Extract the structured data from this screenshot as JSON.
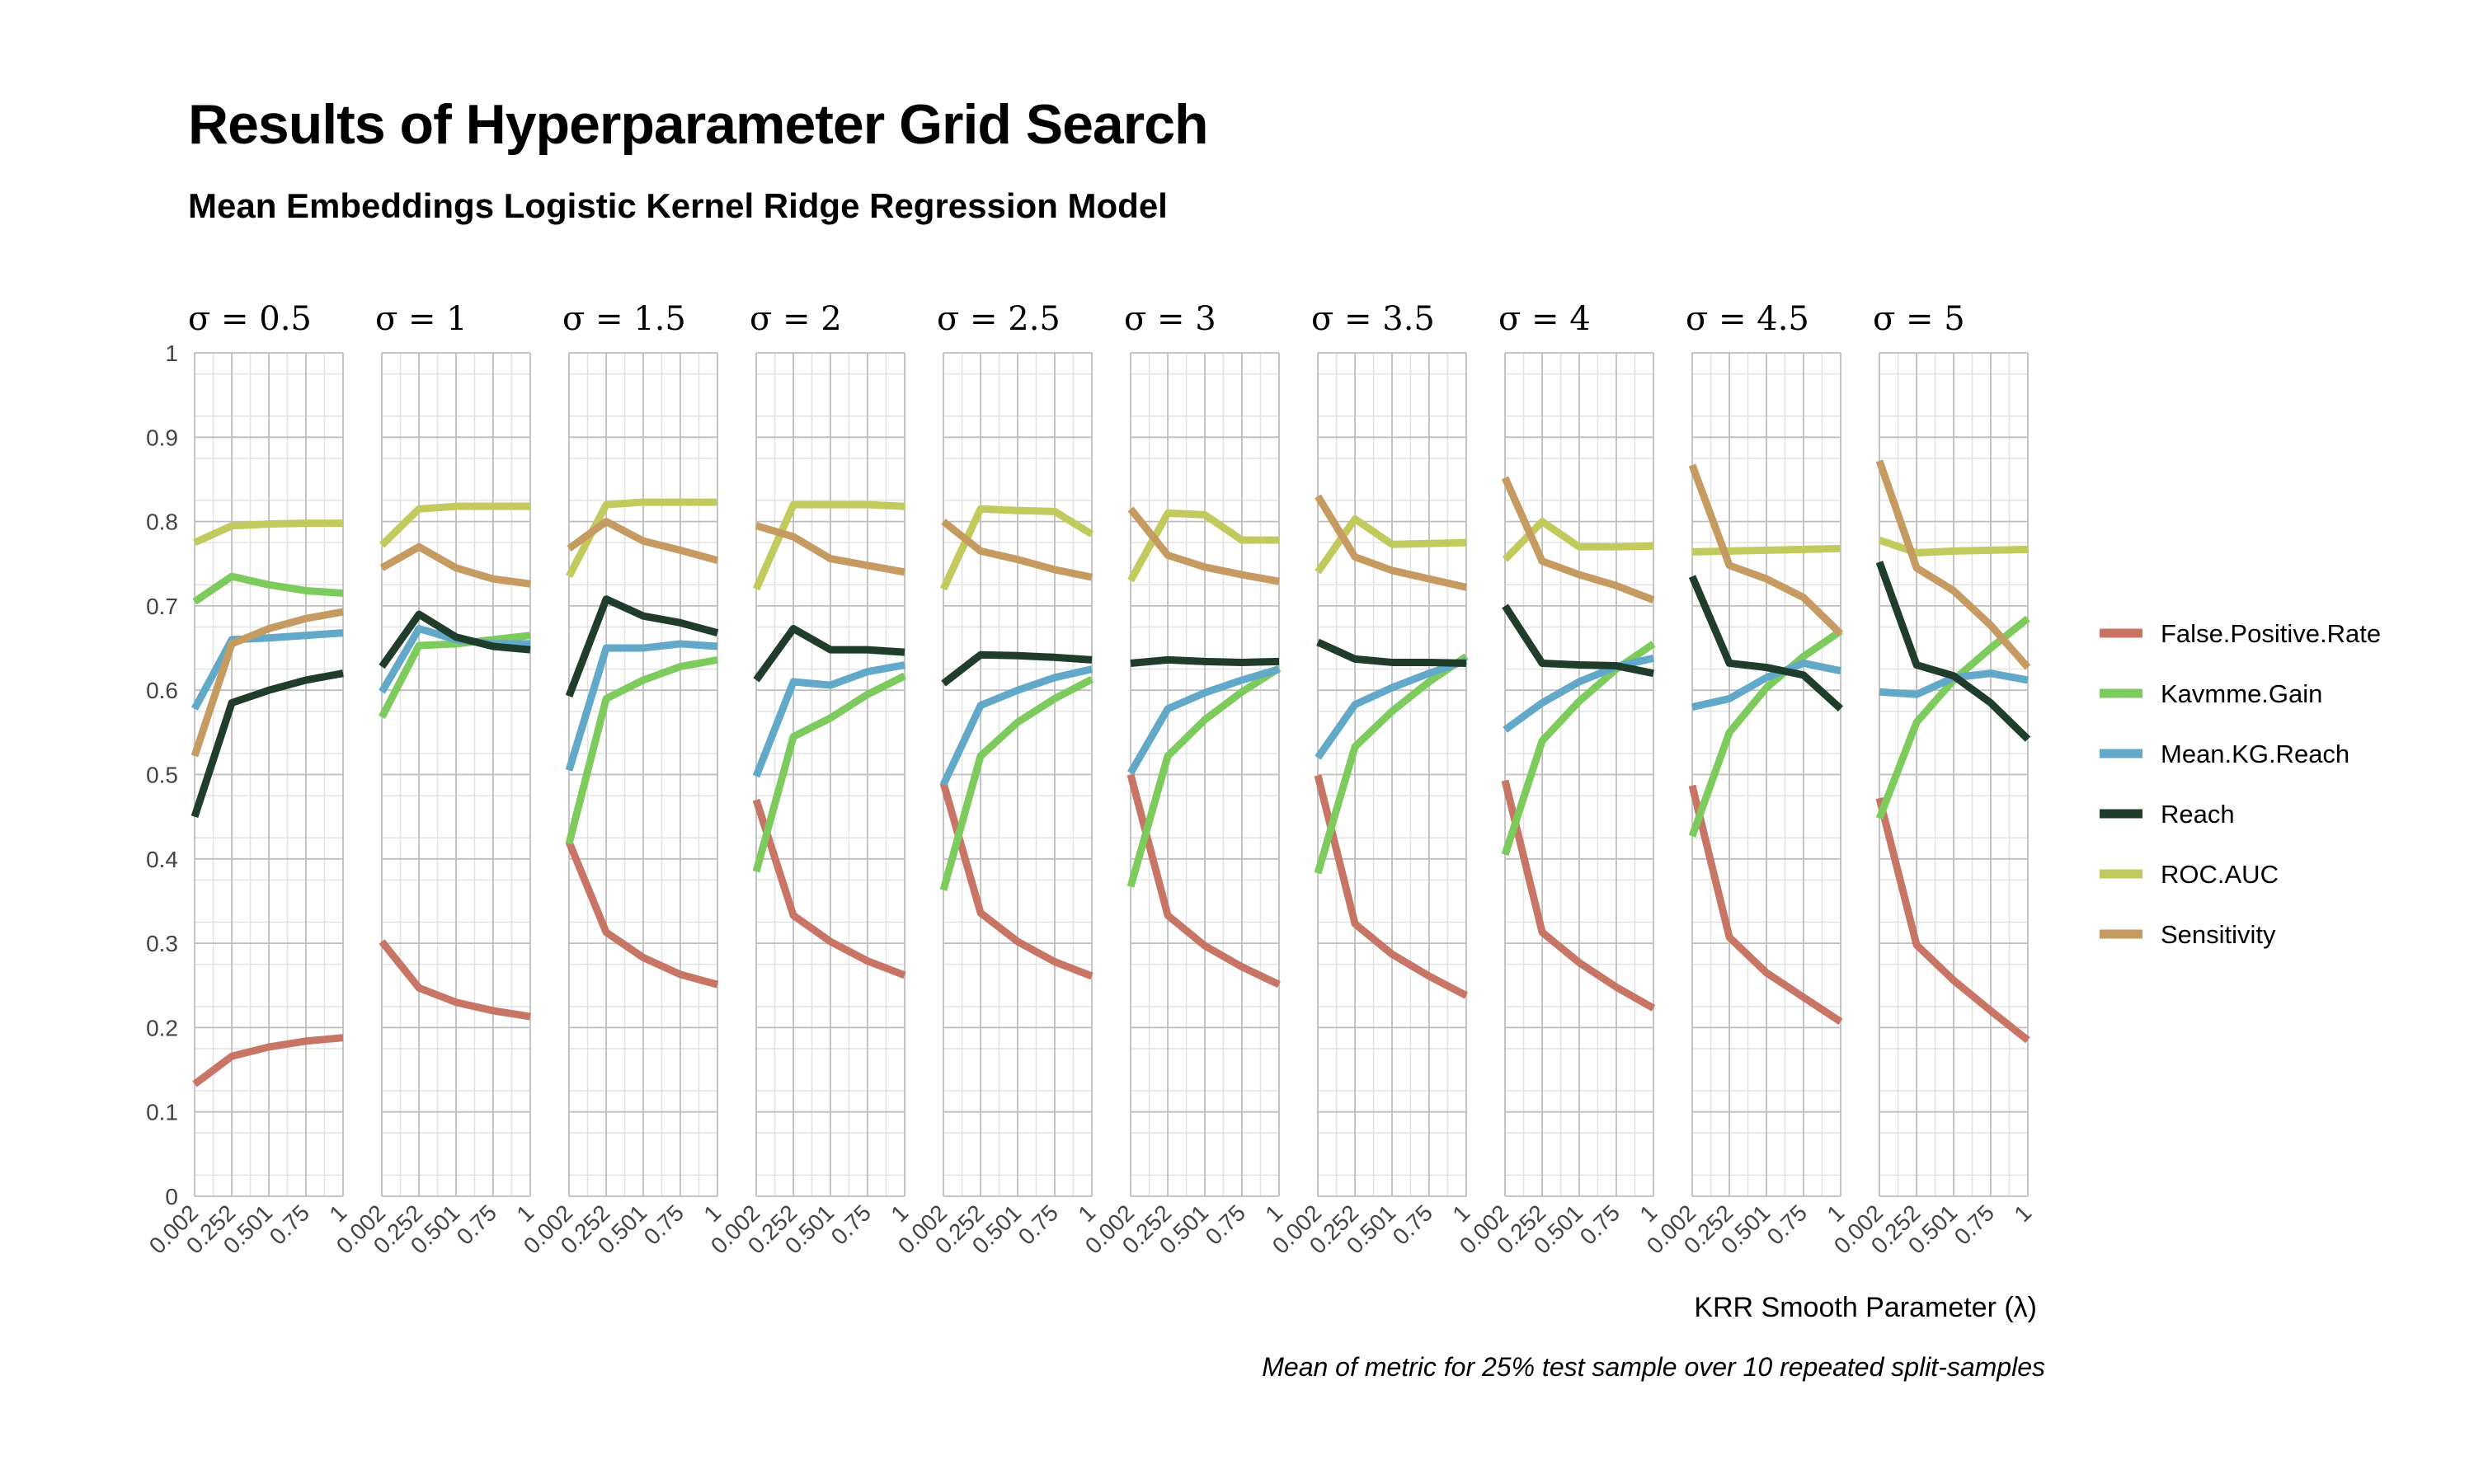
{
  "page": {
    "title": "Results of Hyperparameter Grid Search",
    "subtitle": "Mean Embeddings Logistic Kernel Ridge Regression Model",
    "caption": "Mean of metric for 25% test sample over 10 repeated split-samples"
  },
  "colors": {
    "False.Positive.Rate": "#c87565",
    "Kavmme.Gain": "#7dcb5c",
    "Mean.KG.Reach": "#62a8c9",
    "Reach": "#1f3d2a",
    "ROC.AUC": "#c2ca5e",
    "Sensitivity": "#c69b62"
  },
  "chart_data": {
    "type": "line",
    "title": "Results of Hyperparameter Grid Search",
    "subtitle": "Mean Embeddings Logistic Kernel Ridge Regression Model",
    "xlabel": "KRR Smooth Parameter (λ)",
    "ylabel": "",
    "x": [
      0.002,
      0.252,
      0.501,
      0.75,
      1
    ],
    "x_tick_labels": [
      "0.002",
      "0.252",
      "0.501",
      "0.75",
      "1"
    ],
    "y_tick_labels": [
      "0",
      "0.1",
      "0.2",
      "0.3",
      "0.4",
      "0.5",
      "0.6",
      "0.7",
      "0.8",
      "0.9",
      "1"
    ],
    "ylim": [
      0,
      1
    ],
    "grid": true,
    "legend_position": "right",
    "legend": [
      "False.Positive.Rate",
      "Kavmme.Gain",
      "Mean.KG.Reach",
      "Reach",
      "ROC.AUC",
      "Sensitivity"
    ],
    "facet_variable": "σ",
    "panels": [
      {
        "label": "σ = 0.5",
        "series": [
          {
            "name": "False.Positive.Rate",
            "values": [
              0.133,
              0.166,
              0.177,
              0.184,
              0.188
            ]
          },
          {
            "name": "Kavmme.Gain",
            "values": [
              0.705,
              0.735,
              0.725,
              0.718,
              0.715
            ]
          },
          {
            "name": "Mean.KG.Reach",
            "values": [
              0.578,
              0.66,
              0.662,
              0.665,
              0.668
            ]
          },
          {
            "name": "Reach",
            "values": [
              0.45,
              0.585,
              0.6,
              0.612,
              0.62
            ]
          },
          {
            "name": "ROC.AUC",
            "values": [
              0.775,
              0.795,
              0.797,
              0.798,
              0.798
            ]
          },
          {
            "name": "Sensitivity",
            "values": [
              0.522,
              0.655,
              0.673,
              0.685,
              0.693
            ]
          }
        ]
      },
      {
        "label": "σ = 1",
        "series": [
          {
            "name": "False.Positive.Rate",
            "values": [
              0.302,
              0.247,
              0.23,
              0.22,
              0.213
            ]
          },
          {
            "name": "Kavmme.Gain",
            "values": [
              0.568,
              0.653,
              0.655,
              0.66,
              0.665
            ]
          },
          {
            "name": "Mean.KG.Reach",
            "values": [
              0.598,
              0.673,
              0.66,
              0.655,
              0.655
            ]
          },
          {
            "name": "Reach",
            "values": [
              0.628,
              0.69,
              0.663,
              0.652,
              0.648
            ]
          },
          {
            "name": "ROC.AUC",
            "values": [
              0.772,
              0.815,
              0.818,
              0.818,
              0.818
            ]
          },
          {
            "name": "Sensitivity",
            "values": [
              0.745,
              0.77,
              0.745,
              0.732,
              0.726
            ]
          }
        ]
      },
      {
        "label": "σ = 1.5",
        "series": [
          {
            "name": "False.Positive.Rate",
            "values": [
              0.42,
              0.313,
              0.283,
              0.263,
              0.251
            ]
          },
          {
            "name": "Kavmme.Gain",
            "values": [
              0.418,
              0.59,
              0.612,
              0.628,
              0.636
            ]
          },
          {
            "name": "Mean.KG.Reach",
            "values": [
              0.505,
              0.65,
              0.65,
              0.655,
              0.652
            ]
          },
          {
            "name": "Reach",
            "values": [
              0.593,
              0.708,
              0.688,
              0.68,
              0.668
            ]
          },
          {
            "name": "ROC.AUC",
            "values": [
              0.735,
              0.82,
              0.823,
              0.823,
              0.823
            ]
          },
          {
            "name": "Sensitivity",
            "values": [
              0.768,
              0.8,
              0.777,
              0.766,
              0.754
            ]
          }
        ]
      },
      {
        "label": "σ = 2",
        "series": [
          {
            "name": "False.Positive.Rate",
            "values": [
              0.47,
              0.333,
              0.302,
              0.279,
              0.262
            ]
          },
          {
            "name": "Kavmme.Gain",
            "values": [
              0.385,
              0.545,
              0.567,
              0.595,
              0.617
            ]
          },
          {
            "name": "Mean.KG.Reach",
            "values": [
              0.498,
              0.61,
              0.606,
              0.622,
              0.63
            ]
          },
          {
            "name": "Reach",
            "values": [
              0.612,
              0.673,
              0.648,
              0.648,
              0.645
            ]
          },
          {
            "name": "ROC.AUC",
            "values": [
              0.72,
              0.82,
              0.82,
              0.82,
              0.818
            ]
          },
          {
            "name": "Sensitivity",
            "values": [
              0.795,
              0.782,
              0.756,
              0.748,
              0.74
            ]
          }
        ]
      },
      {
        "label": "σ = 2.5",
        "series": [
          {
            "name": "False.Positive.Rate",
            "values": [
              0.49,
              0.336,
              0.302,
              0.278,
              0.261
            ]
          },
          {
            "name": "Kavmme.Gain",
            "values": [
              0.363,
              0.522,
              0.562,
              0.59,
              0.613
            ]
          },
          {
            "name": "Mean.KG.Reach",
            "values": [
              0.488,
              0.582,
              0.6,
              0.615,
              0.625
            ]
          },
          {
            "name": "Reach",
            "values": [
              0.608,
              0.642,
              0.641,
              0.639,
              0.636
            ]
          },
          {
            "name": "ROC.AUC",
            "values": [
              0.72,
              0.815,
              0.813,
              0.812,
              0.785
            ]
          },
          {
            "name": "Sensitivity",
            "values": [
              0.8,
              0.765,
              0.755,
              0.743,
              0.734
            ]
          }
        ]
      },
      {
        "label": "σ = 3",
        "series": [
          {
            "name": "False.Positive.Rate",
            "values": [
              0.5,
              0.333,
              0.297,
              0.272,
              0.251
            ]
          },
          {
            "name": "Kavmme.Gain",
            "values": [
              0.367,
              0.522,
              0.565,
              0.598,
              0.626
            ]
          },
          {
            "name": "Mean.KG.Reach",
            "values": [
              0.502,
              0.578,
              0.597,
              0.612,
              0.625
            ]
          },
          {
            "name": "Reach",
            "values": [
              0.632,
              0.636,
              0.634,
              0.633,
              0.634
            ]
          },
          {
            "name": "ROC.AUC",
            "values": [
              0.73,
              0.81,
              0.808,
              0.778,
              0.778
            ]
          },
          {
            "name": "Sensitivity",
            "values": [
              0.815,
              0.76,
              0.746,
              0.737,
              0.729
            ]
          }
        ]
      },
      {
        "label": "σ = 3.5",
        "series": [
          {
            "name": "False.Positive.Rate",
            "values": [
              0.499,
              0.323,
              0.287,
              0.261,
              0.238
            ]
          },
          {
            "name": "Kavmme.Gain",
            "values": [
              0.383,
              0.533,
              0.575,
              0.61,
              0.64
            ]
          },
          {
            "name": "Mean.KG.Reach",
            "values": [
              0.52,
              0.583,
              0.603,
              0.62,
              0.635
            ]
          },
          {
            "name": "Reach",
            "values": [
              0.657,
              0.637,
              0.633,
              0.633,
              0.632
            ]
          },
          {
            "name": "ROC.AUC",
            "values": [
              0.74,
              0.803,
              0.773,
              0.774,
              0.775
            ]
          },
          {
            "name": "Sensitivity",
            "values": [
              0.83,
              0.758,
              0.742,
              0.732,
              0.722
            ]
          }
        ]
      },
      {
        "label": "σ = 4",
        "series": [
          {
            "name": "False.Positive.Rate",
            "values": [
              0.493,
              0.313,
              0.277,
              0.248,
              0.223
            ]
          },
          {
            "name": "Kavmme.Gain",
            "values": [
              0.405,
              0.54,
              0.587,
              0.625,
              0.655
            ]
          },
          {
            "name": "Mean.KG.Reach",
            "values": [
              0.553,
              0.585,
              0.61,
              0.628,
              0.638
            ]
          },
          {
            "name": "Reach",
            "values": [
              0.7,
              0.632,
              0.63,
              0.629,
              0.62
            ]
          },
          {
            "name": "ROC.AUC",
            "values": [
              0.755,
              0.8,
              0.77,
              0.77,
              0.771
            ]
          },
          {
            "name": "Sensitivity",
            "values": [
              0.852,
              0.753,
              0.737,
              0.724,
              0.707
            ]
          }
        ]
      },
      {
        "label": "σ = 4.5",
        "series": [
          {
            "name": "False.Positive.Rate",
            "values": [
              0.487,
              0.307,
              0.265,
              0.236,
              0.207
            ]
          },
          {
            "name": "Kavmme.Gain",
            "values": [
              0.427,
              0.55,
              0.603,
              0.64,
              0.67
            ]
          },
          {
            "name": "Mean.KG.Reach",
            "values": [
              0.58,
              0.59,
              0.615,
              0.632,
              0.623
            ]
          },
          {
            "name": "Reach",
            "values": [
              0.735,
              0.632,
              0.627,
              0.618,
              0.578
            ]
          },
          {
            "name": "ROC.AUC",
            "values": [
              0.764,
              0.765,
              0.766,
              0.767,
              0.768
            ]
          },
          {
            "name": "Sensitivity",
            "values": [
              0.867,
              0.748,
              0.732,
              0.71,
              0.667
            ]
          }
        ]
      },
      {
        "label": "σ = 5",
        "series": [
          {
            "name": "False.Positive.Rate",
            "values": [
              0.472,
              0.298,
              0.256,
              0.22,
              0.185
            ]
          },
          {
            "name": "Kavmme.Gain",
            "values": [
              0.448,
              0.562,
              0.612,
              0.65,
              0.685
            ]
          },
          {
            "name": "Mean.KG.Reach",
            "values": [
              0.598,
              0.595,
              0.615,
              0.62,
              0.612
            ]
          },
          {
            "name": "Reach",
            "values": [
              0.752,
              0.63,
              0.617,
              0.585,
              0.542
            ]
          },
          {
            "name": "ROC.AUC",
            "values": [
              0.778,
              0.763,
              0.765,
              0.766,
              0.767
            ]
          },
          {
            "name": "Sensitivity",
            "values": [
              0.872,
              0.745,
              0.718,
              0.677,
              0.627
            ]
          }
        ]
      }
    ]
  }
}
